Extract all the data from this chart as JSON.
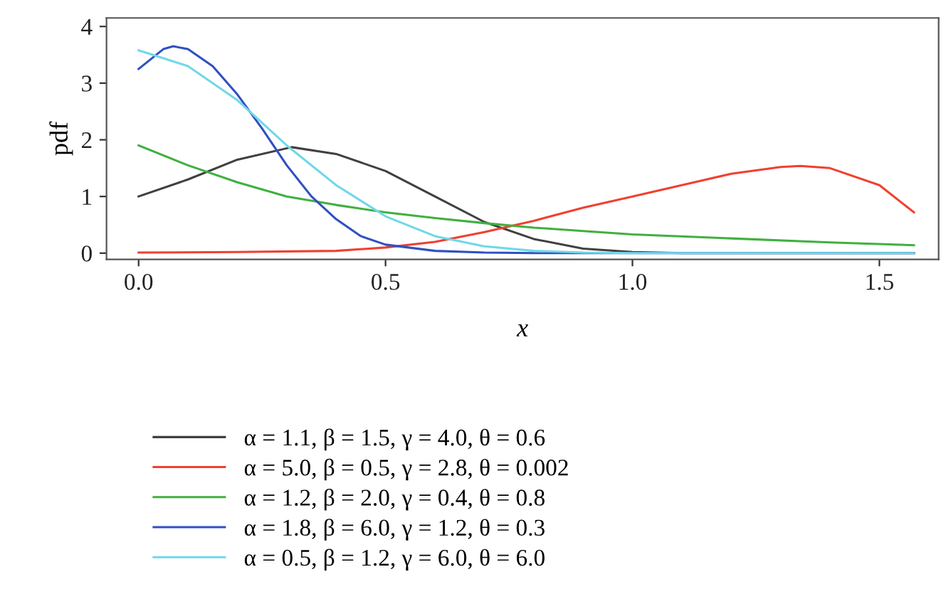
{
  "chart_data": {
    "type": "line",
    "xlabel": "x",
    "ylabel": "pdf",
    "xlim": [
      -0.065,
      1.62
    ],
    "ylim": [
      -0.11,
      4.15
    ],
    "xticks": [
      {
        "value": 0,
        "label": "0.0"
      },
      {
        "value": 0.5,
        "label": "0.5"
      },
      {
        "value": 1,
        "label": "1.0"
      },
      {
        "value": 1.5,
        "label": "1.5"
      }
    ],
    "yticks": [
      0,
      1,
      2,
      3,
      4
    ],
    "grid": false,
    "legend": "bottom",
    "marker": "none",
    "line_style": "solid",
    "series": [
      {
        "name": "α = 1.1, β = 1.5, γ = 4.0, θ = 0.6",
        "color": "#404040",
        "x": [
          0,
          0.1,
          0.2,
          0.31,
          0.4,
          0.5,
          0.6,
          0.7,
          0.8,
          0.9,
          1.0,
          1.1,
          1.57
        ],
        "values": [
          1.0,
          1.3,
          1.65,
          1.87,
          1.75,
          1.45,
          1.0,
          0.55,
          0.25,
          0.08,
          0.02,
          0,
          0
        ]
      },
      {
        "name": "α = 5.0, β = 0.5, γ = 2.8, θ = 0.002",
        "color": "#f04030",
        "x": [
          0,
          0.2,
          0.4,
          0.5,
          0.6,
          0.7,
          0.8,
          0.9,
          1.0,
          1.1,
          1.2,
          1.3,
          1.34,
          1.4,
          1.5,
          1.57
        ],
        "values": [
          0.01,
          0.02,
          0.04,
          0.1,
          0.2,
          0.37,
          0.57,
          0.8,
          1.0,
          1.2,
          1.4,
          1.52,
          1.54,
          1.5,
          1.2,
          0.72
        ]
      },
      {
        "name": "α = 1.2, β = 2.0, γ = 0.4, θ = 0.8",
        "color": "#40b040",
        "x": [
          0,
          0.1,
          0.2,
          0.3,
          0.4,
          0.5,
          0.6,
          0.7,
          0.8,
          0.9,
          1.0,
          1.2,
          1.4,
          1.57
        ],
        "values": [
          1.9,
          1.55,
          1.25,
          1.0,
          0.85,
          0.72,
          0.62,
          0.53,
          0.45,
          0.39,
          0.33,
          0.26,
          0.19,
          0.14
        ]
      },
      {
        "name": "α = 1.8, β = 6.0, γ = 1.2, θ = 0.3",
        "color": "#3050c0",
        "x": [
          0,
          0.05,
          0.07,
          0.1,
          0.15,
          0.2,
          0.25,
          0.3,
          0.35,
          0.4,
          0.45,
          0.5,
          0.6,
          0.7,
          0.8,
          1.57
        ],
        "values": [
          3.25,
          3.6,
          3.65,
          3.6,
          3.3,
          2.8,
          2.2,
          1.55,
          1.0,
          0.6,
          0.3,
          0.15,
          0.04,
          0.01,
          0,
          0
        ]
      },
      {
        "name": "α = 0.5, β = 1.2, γ = 6.0, θ = 6.0",
        "color": "#70d8e8",
        "x": [
          0,
          0.1,
          0.2,
          0.3,
          0.4,
          0.5,
          0.6,
          0.7,
          0.8,
          0.9,
          1.0,
          1.57
        ],
        "values": [
          3.58,
          3.3,
          2.7,
          1.9,
          1.2,
          0.65,
          0.3,
          0.12,
          0.04,
          0.01,
          0,
          0
        ]
      }
    ]
  }
}
